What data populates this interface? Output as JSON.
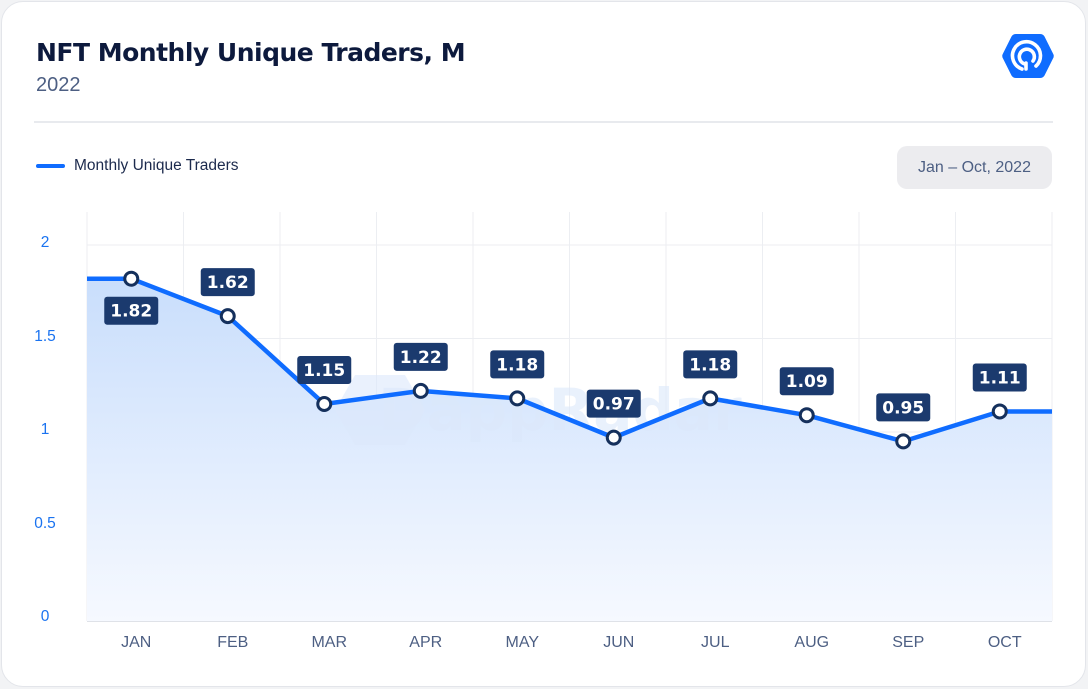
{
  "header": {
    "title": "NFT Monthly Unique Traders, M",
    "subtitle": "2022",
    "logo_icon": "dappradar-logo-icon"
  },
  "legend": {
    "label": "Monthly Unique Traders",
    "color": "#0f6cff"
  },
  "range_badge": "Jan – Oct, 2022",
  "watermark": "DappRadar",
  "colors": {
    "line": "#0f6cff",
    "label_bg": "#1b3a6e",
    "label_text": "#ffffff",
    "point_stroke": "#15305c",
    "tick_y": "#1a73f0",
    "tick_x": "#4d5f83"
  },
  "chart_data": {
    "type": "area",
    "title": "NFT Monthly Unique Traders, M",
    "subtitle": "2022",
    "xlabel": "",
    "ylabel": "",
    "categories": [
      "JAN",
      "FEB",
      "MAR",
      "APR",
      "MAY",
      "JUN",
      "JUL",
      "AUG",
      "SEP",
      "OCT"
    ],
    "series": [
      {
        "name": "Monthly Unique Traders",
        "values": [
          1.82,
          1.62,
          1.15,
          1.22,
          1.18,
          0.97,
          1.18,
          1.09,
          0.95,
          1.11
        ]
      }
    ],
    "y_ticks": [
      "0",
      "0.5",
      "1",
      "1.5",
      "2"
    ],
    "ylim": [
      0,
      2.1
    ],
    "grid": true,
    "legend_position": "top-left",
    "data_labels": true
  }
}
